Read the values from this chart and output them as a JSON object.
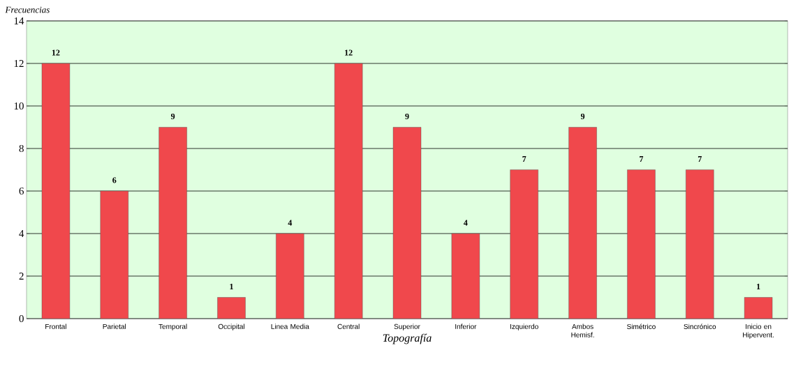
{
  "chart_data": {
    "type": "bar",
    "xlabel": "Topografía",
    "ylabel": "Frecuencias",
    "categories": [
      "Frontal",
      "Parietal",
      "Temporal",
      "Occipital",
      "Linea Media",
      "Central",
      "Superior",
      "Inferior",
      "Izquierdo",
      "Ambos Hemisf.",
      "Simétrico",
      "Sincrónico",
      "Inicio en Hipervent."
    ],
    "values": [
      12,
      6,
      9,
      1,
      4,
      12,
      9,
      4,
      7,
      9,
      7,
      7,
      1
    ],
    "color": "#f0484c",
    "ylim": [
      0,
      14
    ],
    "yticks": [
      0,
      2,
      4,
      6,
      8,
      10,
      12,
      14
    ],
    "grid": "y",
    "data_labels": true
  }
}
